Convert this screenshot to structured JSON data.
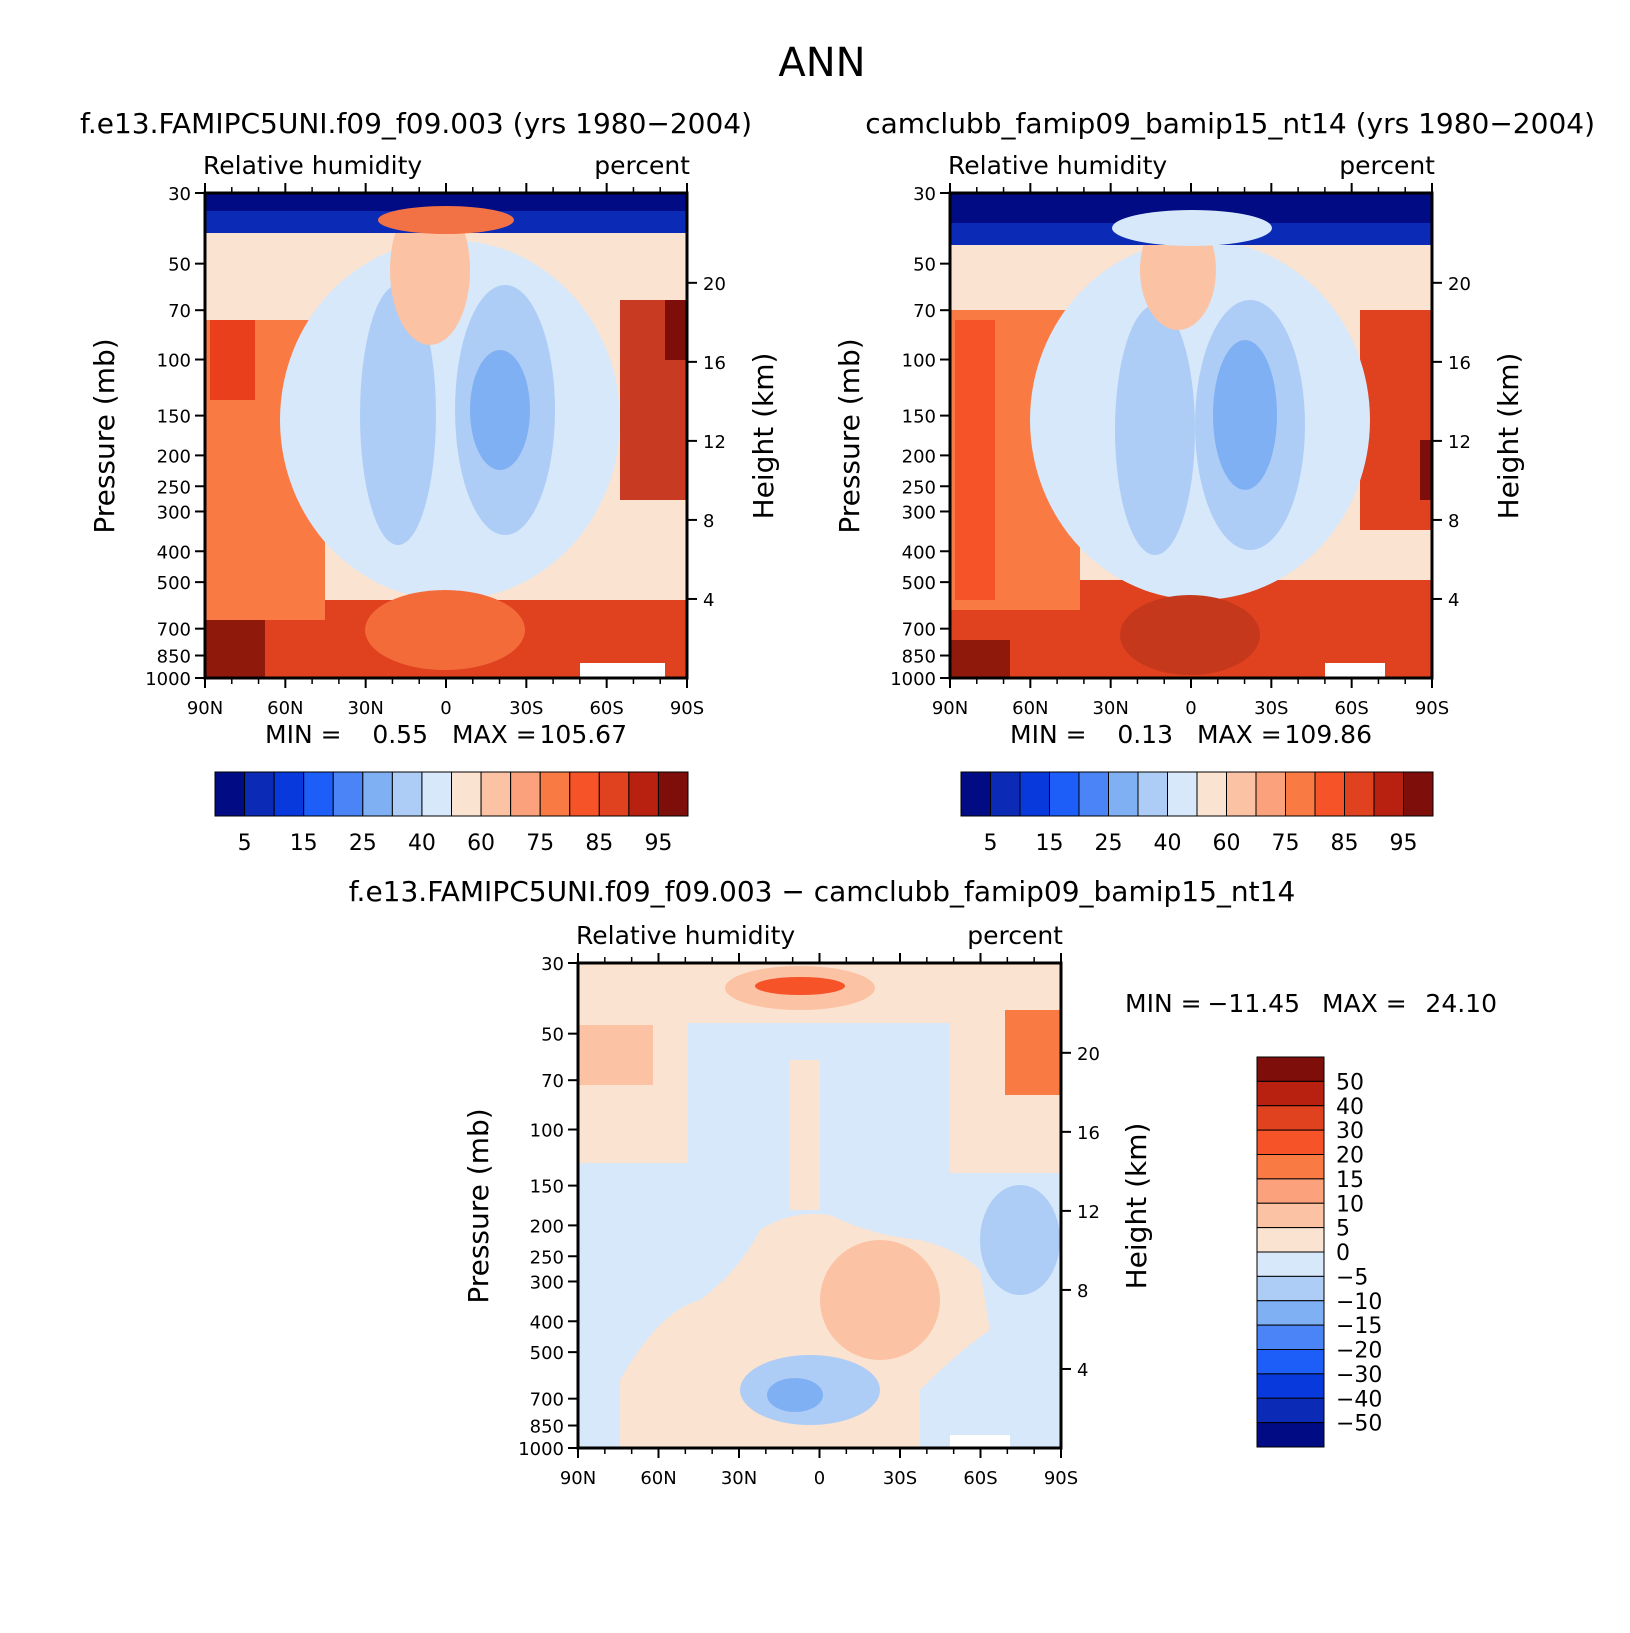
{
  "figure": {
    "title": "ANN"
  },
  "panels": [
    {
      "case_title": "f.e13.FAMIPC5UNI.f09_f09.003 (yrs 1980−2004)",
      "variable_label": "Relative humidity",
      "units": "percent",
      "ylabel": "Pressure (mb)",
      "ylabel_right": "Height (km)",
      "min_label": "MIN =",
      "min_value": "0.55",
      "max_label": "MAX =",
      "max_value": "105.67"
    },
    {
      "case_title": "camclubb_famip09_bamip15_nt14 (yrs 1980−2004)",
      "variable_label": "Relative humidity",
      "units": "percent",
      "ylabel": "Pressure (mb)",
      "ylabel_right": "Height (km)",
      "min_label": "MIN =",
      "min_value": "0.13",
      "max_label": "MAX =",
      "max_value": "109.86"
    },
    {
      "case_title": "f.e13.FAMIPC5UNI.f09_f09.003 − camclubb_famip09_bamip15_nt14",
      "variable_label": "Relative humidity",
      "units": "percent",
      "ylabel": "Pressure (mb)",
      "ylabel_right": "Height (km)",
      "min_label": "MIN =",
      "min_value": "−11.45",
      "max_label": "MAX =",
      "max_value": "24.10"
    }
  ],
  "chart_data": [
    {
      "type": "heatmap",
      "title": "f.e13.FAMIPC5UNI.f09_f09.003 (yrs 1980−2004)",
      "variable": "Relative humidity",
      "units": "percent",
      "min": 0.55,
      "max": 105.67,
      "x_ticks": [
        "90N",
        "60N",
        "30N",
        "0",
        "30S",
        "60S",
        "90S"
      ],
      "xlim": [
        90,
        -90
      ],
      "y_ticks": [
        30,
        50,
        70,
        100,
        150,
        200,
        250,
        300,
        400,
        500,
        700,
        850,
        1000
      ],
      "ylim": [
        1000,
        30
      ],
      "ylabel": "Pressure (mb)",
      "right_ticks_km": [
        20,
        16,
        12,
        8,
        4
      ],
      "right_label": "Height (km)",
      "colorbar": {
        "levels": [
          5,
          10,
          15,
          20,
          25,
          30,
          40,
          50,
          60,
          70,
          75,
          80,
          85,
          90,
          95
        ],
        "labels": [
          "5",
          "15",
          "25",
          "40",
          "60",
          "75",
          "85",
          "95"
        ],
        "colors": [
          "#010c84",
          "#0b2ab5",
          "#0839dc",
          "#1d5ef8",
          "#4a84f6",
          "#7fb0f4",
          "#aecdf6",
          "#d6e8fa",
          "#fbe3d2",
          "#fcc2a4",
          "#fba17c",
          "#fa7a44",
          "#f65328",
          "#e0421f",
          "#b8210f",
          "#7e0e0a"
        ]
      }
    },
    {
      "type": "heatmap",
      "title": "camclubb_famip09_bamip15_nt14 (yrs 1980−2004)",
      "variable": "Relative humidity",
      "units": "percent",
      "min": 0.13,
      "max": 109.86,
      "x_ticks": [
        "90N",
        "60N",
        "30N",
        "0",
        "30S",
        "60S",
        "90S"
      ],
      "xlim": [
        90,
        -90
      ],
      "y_ticks": [
        30,
        50,
        70,
        100,
        150,
        200,
        250,
        300,
        400,
        500,
        700,
        850,
        1000
      ],
      "ylim": [
        1000,
        30
      ],
      "ylabel": "Pressure (mb)",
      "right_ticks_km": [
        20,
        16,
        12,
        8,
        4
      ],
      "right_label": "Height (km)",
      "colorbar": {
        "levels": [
          5,
          10,
          15,
          20,
          25,
          30,
          40,
          50,
          60,
          70,
          75,
          80,
          85,
          90,
          95
        ],
        "labels": [
          "5",
          "15",
          "25",
          "40",
          "60",
          "75",
          "85",
          "95"
        ],
        "colors": [
          "#010c84",
          "#0b2ab5",
          "#0839dc",
          "#1d5ef8",
          "#4a84f6",
          "#7fb0f4",
          "#aecdf6",
          "#d6e8fa",
          "#fbe3d2",
          "#fcc2a4",
          "#fba17c",
          "#fa7a44",
          "#f65328",
          "#e0421f",
          "#b8210f",
          "#7e0e0a"
        ]
      }
    },
    {
      "type": "heatmap",
      "title": "f.e13.FAMIPC5UNI.f09_f09.003 − camclubb_famip09_bamip15_nt14",
      "variable": "Relative humidity",
      "units": "percent",
      "min": -11.45,
      "max": 24.1,
      "x_ticks": [
        "90N",
        "60N",
        "30N",
        "0",
        "30S",
        "60S",
        "90S"
      ],
      "xlim": [
        90,
        -90
      ],
      "y_ticks": [
        30,
        50,
        70,
        100,
        150,
        200,
        250,
        300,
        400,
        500,
        700,
        850,
        1000
      ],
      "ylim": [
        1000,
        30
      ],
      "ylabel": "Pressure (mb)",
      "right_ticks_km": [
        20,
        16,
        12,
        8,
        4
      ],
      "right_label": "Height (km)",
      "colorbar": {
        "levels": [
          50,
          40,
          30,
          20,
          15,
          10,
          5,
          0,
          -5,
          -10,
          -15,
          -20,
          -30,
          -40,
          -50
        ],
        "labels": [
          "50",
          "40",
          "30",
          "20",
          "15",
          "10",
          "5",
          "0",
          "−5",
          "−10",
          "−15",
          "−20",
          "−30",
          "−40",
          "−50"
        ],
        "colors": [
          "#7e0e0a",
          "#b8210f",
          "#e0421f",
          "#f65328",
          "#fa7a44",
          "#fba17c",
          "#fcc2a4",
          "#fbe3d2",
          "#d6e8fa",
          "#aecdf6",
          "#7fb0f4",
          "#4a84f6",
          "#1d5ef8",
          "#0839dc",
          "#0b2ab5",
          "#010c84"
        ]
      }
    }
  ]
}
